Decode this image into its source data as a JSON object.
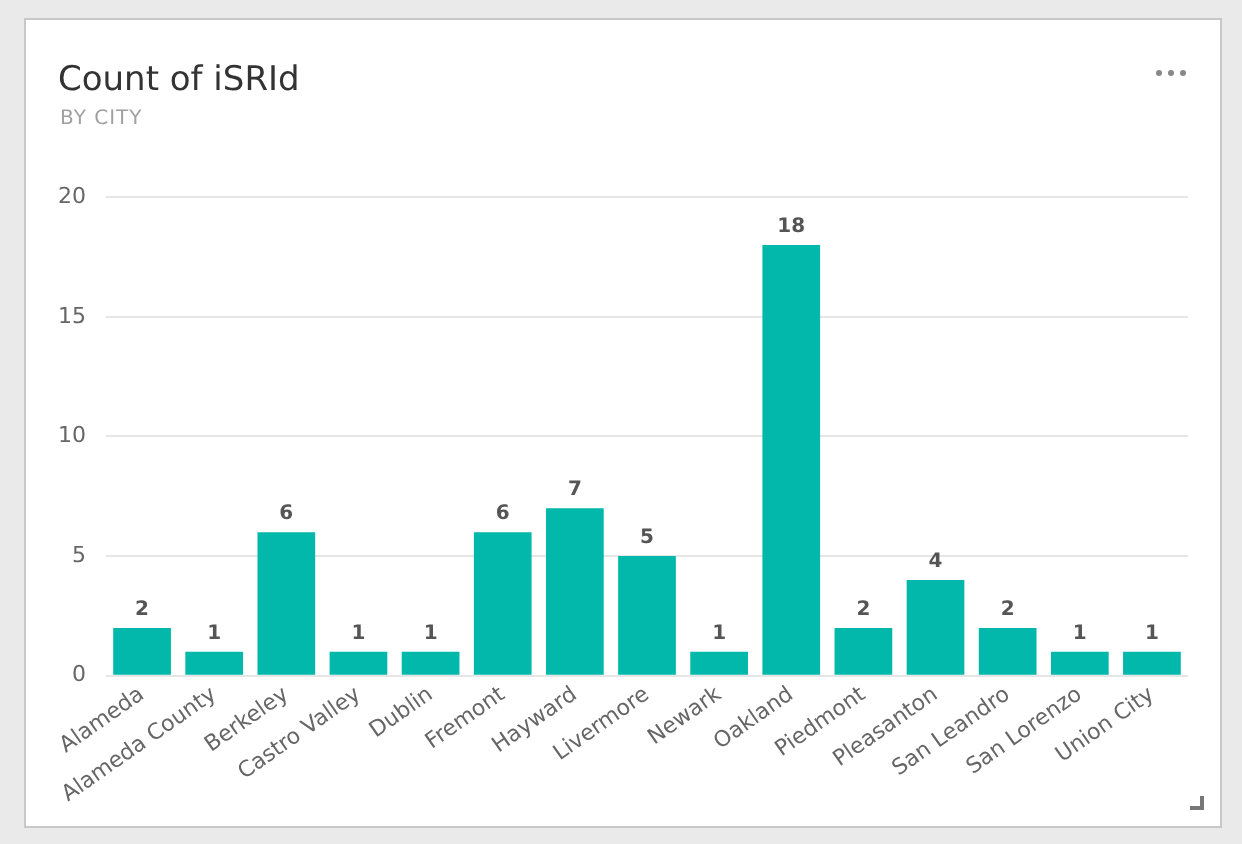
{
  "chart_data": {
    "type": "bar",
    "title": "Count of iSRId",
    "subtitle": "BY CITY",
    "categories": [
      "Alameda",
      "Alameda County",
      "Berkeley",
      "Castro Valley",
      "Dublin",
      "Fremont",
      "Hayward",
      "Livermore",
      "Newark",
      "Oakland",
      "Piedmont",
      "Pleasanton",
      "San Leandro",
      "San Lorenzo",
      "Union City"
    ],
    "values": [
      2,
      1,
      6,
      1,
      1,
      6,
      7,
      5,
      1,
      18,
      2,
      4,
      2,
      1,
      1
    ],
    "color": "#01b8aa",
    "ylim": [
      0,
      20
    ],
    "yticks": [
      0,
      5,
      10,
      15,
      20
    ],
    "grid": "y",
    "data_labels": true
  }
}
